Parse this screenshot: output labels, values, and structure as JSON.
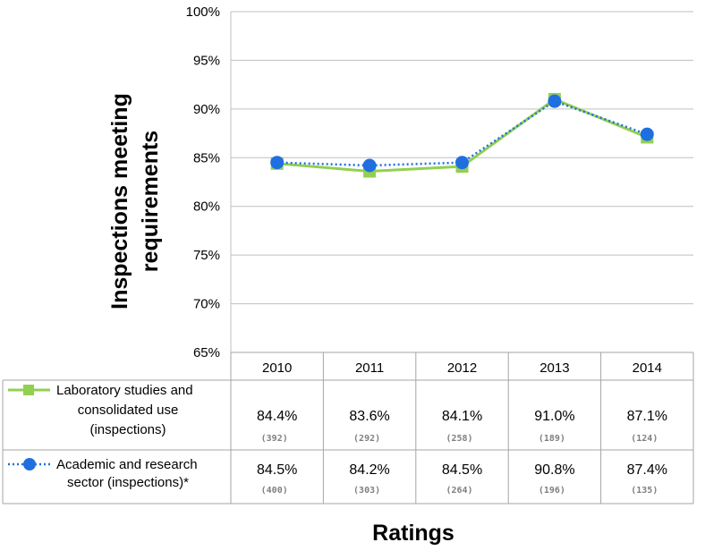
{
  "chart_data": {
    "type": "line",
    "categories": [
      "2010",
      "2011",
      "2012",
      "2013",
      "2014"
    ],
    "xlabel": "Ratings",
    "ylabel_lines": [
      "Inspections meeting",
      "requirements"
    ],
    "ylim": [
      0.65,
      1.0
    ],
    "yticks": [
      "65%",
      "70%",
      "75%",
      "80%",
      "85%",
      "90%",
      "95%",
      "100%"
    ],
    "grid": "horizontal",
    "legend": "data-table",
    "series": [
      {
        "name_lines": [
          "Laboratory studies and",
          "consolidated use",
          "(inspections)"
        ],
        "values": [
          0.844,
          0.836,
          0.841,
          0.91,
          0.871
        ],
        "labels": [
          "84.4%",
          "83.6%",
          "84.1%",
          "91.0%",
          "87.1%"
        ],
        "counts": [
          "(392)",
          "(292)",
          "(258)",
          "(189)",
          "(124)"
        ],
        "color": "#92d050",
        "marker": "square",
        "line_style": "solid"
      },
      {
        "name_lines": [
          "Academic and research",
          "sector (inspections)*"
        ],
        "values": [
          0.845,
          0.842,
          0.845,
          0.908,
          0.874
        ],
        "labels": [
          "84.5%",
          "84.2%",
          "84.5%",
          "90.8%",
          "87.4%"
        ],
        "counts": [
          "(400)",
          "(303)",
          "(264)",
          "(196)",
          "(135)"
        ],
        "color": "#1f6fe0",
        "marker": "circle",
        "line_style": "dotted"
      }
    ]
  }
}
